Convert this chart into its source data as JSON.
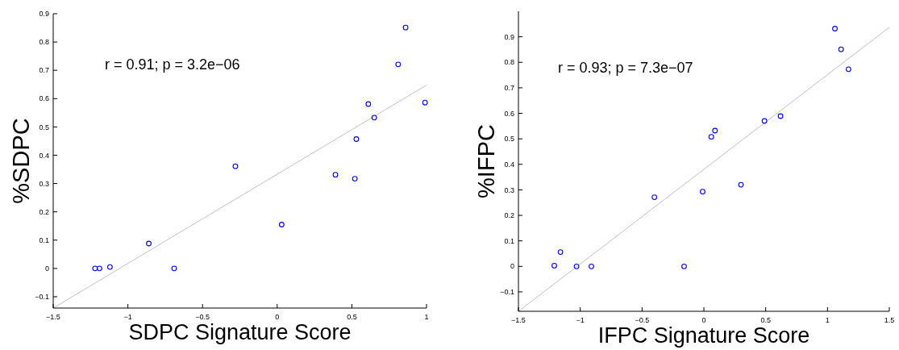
{
  "chart_data": [
    {
      "type": "scatter",
      "xlabel": "SDPC Signature Score",
      "ylabel": "%SDPC",
      "annotations": [
        "r = 0.91; p = 3.2e−06"
      ],
      "xlim": [
        -1.5,
        1
      ],
      "xticks": [
        {
          "value": -1.5,
          "label": "−1.5"
        },
        {
          "value": -1,
          "label": "−1"
        },
        {
          "value": -0.5,
          "label": "−0.5"
        },
        0,
        0.5,
        1
      ],
      "ylim": [
        -0.14,
        0.9
      ],
      "yticks": [
        {
          "value": -0.1,
          "label": "−0.1"
        },
        0,
        0.1,
        0.2,
        0.3,
        0.4,
        0.5,
        0.6,
        0.7,
        0.8,
        0.9
      ],
      "series": [
        {
          "color": "#0000ff",
          "marker": "circle",
          "x": [
            -1.22,
            -1.19,
            -1.12,
            -0.86,
            -0.69,
            -0.28,
            0.03,
            0.39,
            0.52,
            0.53,
            0.61,
            0.65,
            0.81,
            0.86,
            0.99
          ],
          "values": [
            0,
            0,
            0.005,
            0.088,
            0,
            0.361,
            0.155,
            0.331,
            0.317,
            0.457,
            0.581,
            0.533,
            0.721,
            0.851,
            0.586
          ]
        },
        {
          "type": "line",
          "color": "#c0c0c0",
          "x": [
            -1.5,
            1
          ],
          "values": [
            -0.14,
            0.648
          ]
        }
      ]
    },
    {
      "type": "scatter",
      "xlabel": "IFPC Signature Score",
      "ylabel": "%IFPC",
      "annotations": [
        "r = 0.93; p = 7.3e−07"
      ],
      "xlim": [
        -1.5,
        1.5
      ],
      "xticks": [
        {
          "value": -1.5,
          "label": "−1.5"
        },
        {
          "value": -1,
          "label": "−1"
        },
        {
          "value": -0.5,
          "label": "−0.5"
        },
        0,
        0.5,
        1,
        1.5
      ],
      "ylim": [
        -0.176,
        1.0
      ],
      "yticks": [
        {
          "value": -0.1,
          "label": "−0.1"
        },
        0,
        0.1,
        0.2,
        0.3,
        0.4,
        0.5,
        0.6,
        0.7,
        0.8,
        0.9
      ],
      "series": [
        {
          "color": "#0000ff",
          "marker": "circle",
          "x": [
            -1.21,
            -1.16,
            -1.03,
            -0.91,
            -0.4,
            -0.16,
            -0.01,
            0.06,
            0.09,
            0.3,
            0.49,
            0.62,
            1.06,
            1.11,
            1.17
          ],
          "values": [
            0.003,
            0.056,
            0,
            0,
            0.271,
            0,
            0.293,
            0.508,
            0.532,
            0.32,
            0.57,
            0.589,
            0.932,
            0.851,
            0.773
          ]
        },
        {
          "type": "line",
          "color": "#c0c0c0",
          "x": [
            -1.5,
            1.5
          ],
          "values": [
            -0.176,
            0.937
          ]
        }
      ]
    }
  ]
}
